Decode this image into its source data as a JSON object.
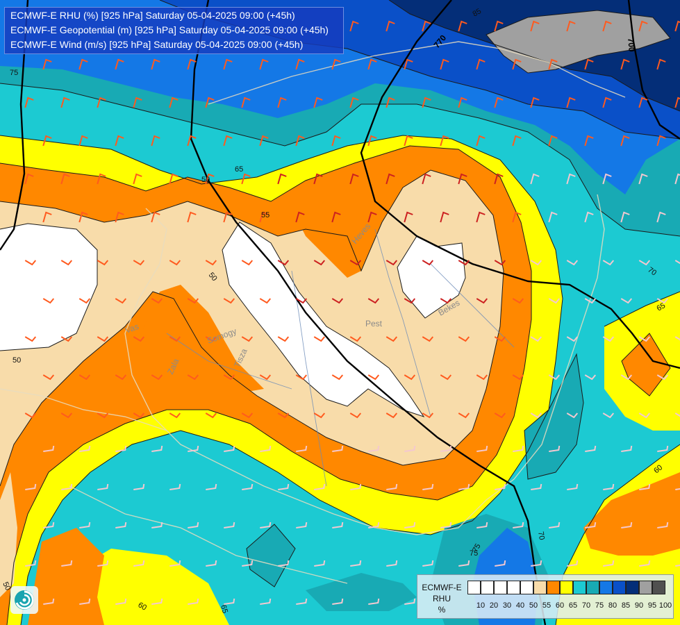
{
  "title_lines": [
    "ECMWF-E RHU (%) [925 hPa] Saturday 05-04-2025 09:00 (+45h)",
    "ECMWF-E Geopotential (m) [925 hPa] Saturday 05-04-2025 09:00 (+45h)",
    "ECMWF-E Wind (m/s) [925 hPa] Saturday 05-04-2025 09:00 (+45h)"
  ],
  "legend": {
    "title_line1": "ECMWF-E",
    "title_line2": "RHU",
    "title_line3": "%",
    "colors": [
      "#ffffff",
      "#ffffff",
      "#ffffff",
      "#ffffff",
      "#ffffff",
      "#f8dcaa",
      "#ff8800",
      "#ffff00",
      "#1ccad2",
      "#18aab4",
      "#1478e6",
      "#0a50c8",
      "#042e78",
      "#a0a0a0",
      "#505050"
    ],
    "ticks": [
      "10",
      "20",
      "30",
      "40",
      "50",
      "55",
      "60",
      "65",
      "70",
      "75",
      "80",
      "85",
      "90",
      "95",
      "100"
    ]
  },
  "rhu_contour_labels": [
    "85",
    "75",
    "75",
    "65",
    "55",
    "50",
    "50",
    "50",
    "70",
    "65",
    "60",
    "50",
    "60",
    "65",
    "75",
    "70"
  ],
  "geopotential_labels": [
    "770",
    "700"
  ],
  "place_labels": [
    "Vas",
    "Pest",
    "Bekes",
    "Heves",
    "Tisza",
    "Somogy",
    "Zala"
  ],
  "colors": {
    "rhu_50_55": "#f8dcaa",
    "rhu_55_60": "#ff8800",
    "rhu_60_65": "#ffff00",
    "rhu_65_70": "#1ccad2",
    "rhu_70_75": "#18aab4",
    "rhu_75_80": "#1478e6",
    "rhu_80_85": "#0a50c8",
    "rhu_85_90": "#042e78",
    "rhu_90_95": "#a0a0a0",
    "wind_barb_strong": "#cc2020",
    "wind_barb_mid": "#ff5a1e",
    "wind_barb_light": "#f4c8d0"
  }
}
